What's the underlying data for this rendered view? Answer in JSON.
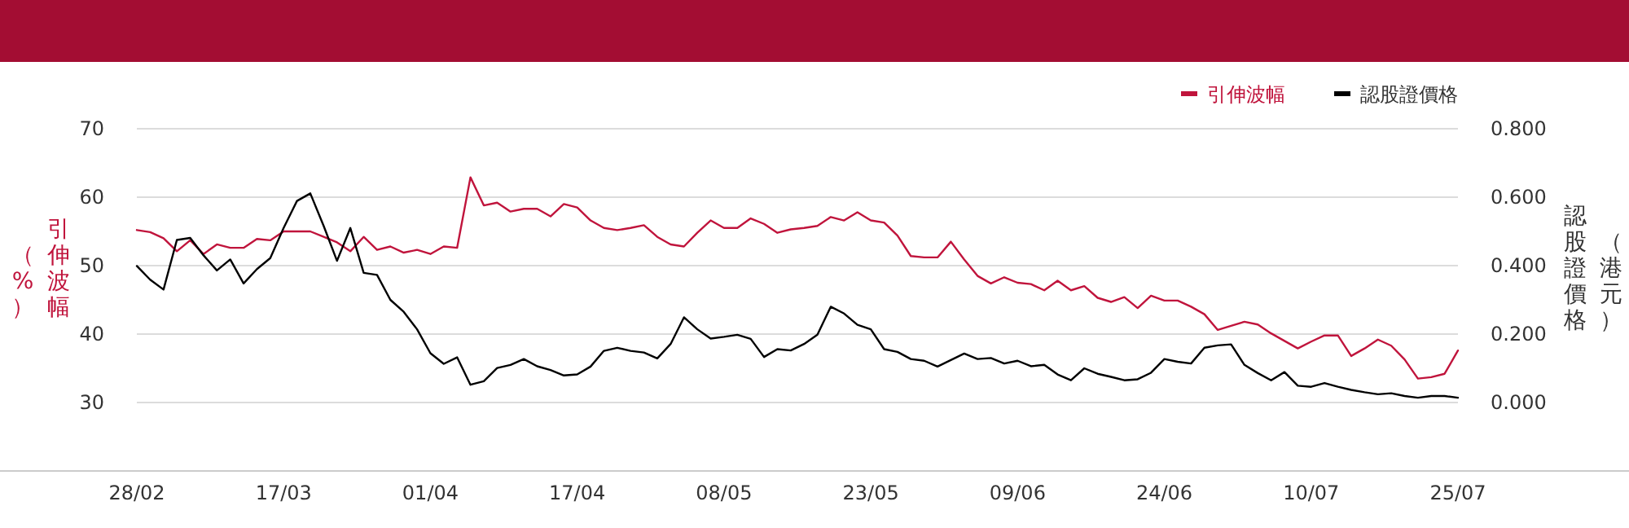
{
  "chart_data": {
    "type": "line",
    "categories": [
      "28/02",
      null,
      null,
      null,
      null,
      null,
      null,
      null,
      null,
      null,
      null,
      "17/03",
      null,
      null,
      null,
      null,
      null,
      null,
      null,
      null,
      null,
      null,
      "01/04",
      null,
      null,
      null,
      null,
      null,
      null,
      null,
      null,
      null,
      null,
      "17/04",
      null,
      null,
      null,
      null,
      null,
      null,
      null,
      null,
      null,
      null,
      "08/05",
      null,
      null,
      null,
      null,
      null,
      null,
      null,
      null,
      null,
      null,
      "23/05",
      null,
      null,
      null,
      null,
      null,
      null,
      null,
      null,
      null,
      null,
      "09/06",
      null,
      null,
      null,
      null,
      null,
      null,
      null,
      null,
      null,
      null,
      "24/06",
      null,
      null,
      null,
      null,
      null,
      null,
      null,
      null,
      null,
      null,
      "10/07",
      null,
      null,
      null,
      null,
      null,
      null,
      null,
      null,
      null,
      null,
      "25/07"
    ],
    "series": [
      {
        "name": "引伸波幅",
        "color": "#c0143c",
        "values": [
          55.2,
          54.9,
          54.0,
          52.1,
          53.7,
          51.7,
          53.1,
          52.6,
          52.6,
          53.9,
          53.7,
          55.0,
          55.0,
          55.0,
          54.2,
          53.4,
          52.1,
          54.2,
          52.3,
          52.8,
          51.9,
          52.3,
          51.7,
          52.8,
          52.6,
          62.9,
          58.8,
          59.2,
          57.9,
          58.3,
          58.3,
          57.2,
          59.0,
          58.5,
          56.6,
          55.5,
          55.2,
          55.5,
          55.9,
          54.2,
          53.1,
          52.8,
          54.8,
          56.6,
          55.5,
          55.5,
          56.9,
          56.1,
          54.8,
          55.3,
          55.5,
          55.8,
          57.1,
          56.6,
          57.8,
          56.6,
          56.3,
          54.4,
          51.4,
          51.2,
          51.2,
          53.5,
          50.9,
          48.5,
          47.4,
          48.3,
          47.5,
          47.3,
          46.4,
          47.8,
          46.4,
          47.0,
          45.3,
          44.7,
          45.4,
          43.8,
          45.6,
          44.9,
          44.9,
          44.0,
          42.9,
          40.6,
          41.2,
          41.8,
          41.4,
          40.1,
          39.0,
          37.9,
          38.9,
          39.8,
          39.8,
          36.8,
          37.9,
          39.2,
          38.3,
          36.3,
          33.5,
          33.7,
          34.2,
          37.6
        ]
      },
      {
        "name": "認股證價格",
        "color": "#000000",
        "axis": "y2",
        "values": [
          0.399,
          0.359,
          0.33,
          0.475,
          0.481,
          0.43,
          0.386,
          0.418,
          0.348,
          0.39,
          0.422,
          0.51,
          0.589,
          0.611,
          0.516,
          0.414,
          0.51,
          0.379,
          0.373,
          0.3,
          0.265,
          0.214,
          0.144,
          0.113,
          0.132,
          0.052,
          0.062,
          0.101,
          0.11,
          0.127,
          0.106,
          0.095,
          0.079,
          0.082,
          0.105,
          0.151,
          0.16,
          0.151,
          0.146,
          0.129,
          0.171,
          0.249,
          0.214,
          0.187,
          0.192,
          0.198,
          0.186,
          0.133,
          0.156,
          0.152,
          0.171,
          0.198,
          0.28,
          0.26,
          0.227,
          0.214,
          0.156,
          0.148,
          0.127,
          0.122,
          0.105,
          0.124,
          0.143,
          0.127,
          0.13,
          0.114,
          0.122,
          0.106,
          0.11,
          0.082,
          0.065,
          0.1,
          0.084,
          0.075,
          0.065,
          0.068,
          0.087,
          0.127,
          0.119,
          0.114,
          0.16,
          0.167,
          0.17,
          0.11,
          0.086,
          0.065,
          0.089,
          0.049,
          0.046,
          0.057,
          0.046,
          0.037,
          0.03,
          0.024,
          0.027,
          0.019,
          0.014,
          0.019,
          0.019,
          0.014
        ]
      }
    ],
    "ylabel": "引伸波幅（%）",
    "y2label": "認股證價格（港元）",
    "ylim": [
      20,
      70
    ],
    "yticks": [
      30,
      40,
      50,
      60,
      70
    ],
    "y2lim": [
      -0.2,
      0.8
    ],
    "y2ticks": [
      {
        "value": 0,
        "label": "0.000"
      },
      {
        "value": 0.2,
        "label": "0.200"
      },
      {
        "value": 0.4,
        "label": "0.400"
      },
      {
        "value": 0.6,
        "label": "0.600"
      },
      {
        "value": 0.8,
        "label": "0.800"
      }
    ],
    "grid": "y",
    "legend": "top right",
    "marker": "none",
    "line_style": "solid"
  }
}
